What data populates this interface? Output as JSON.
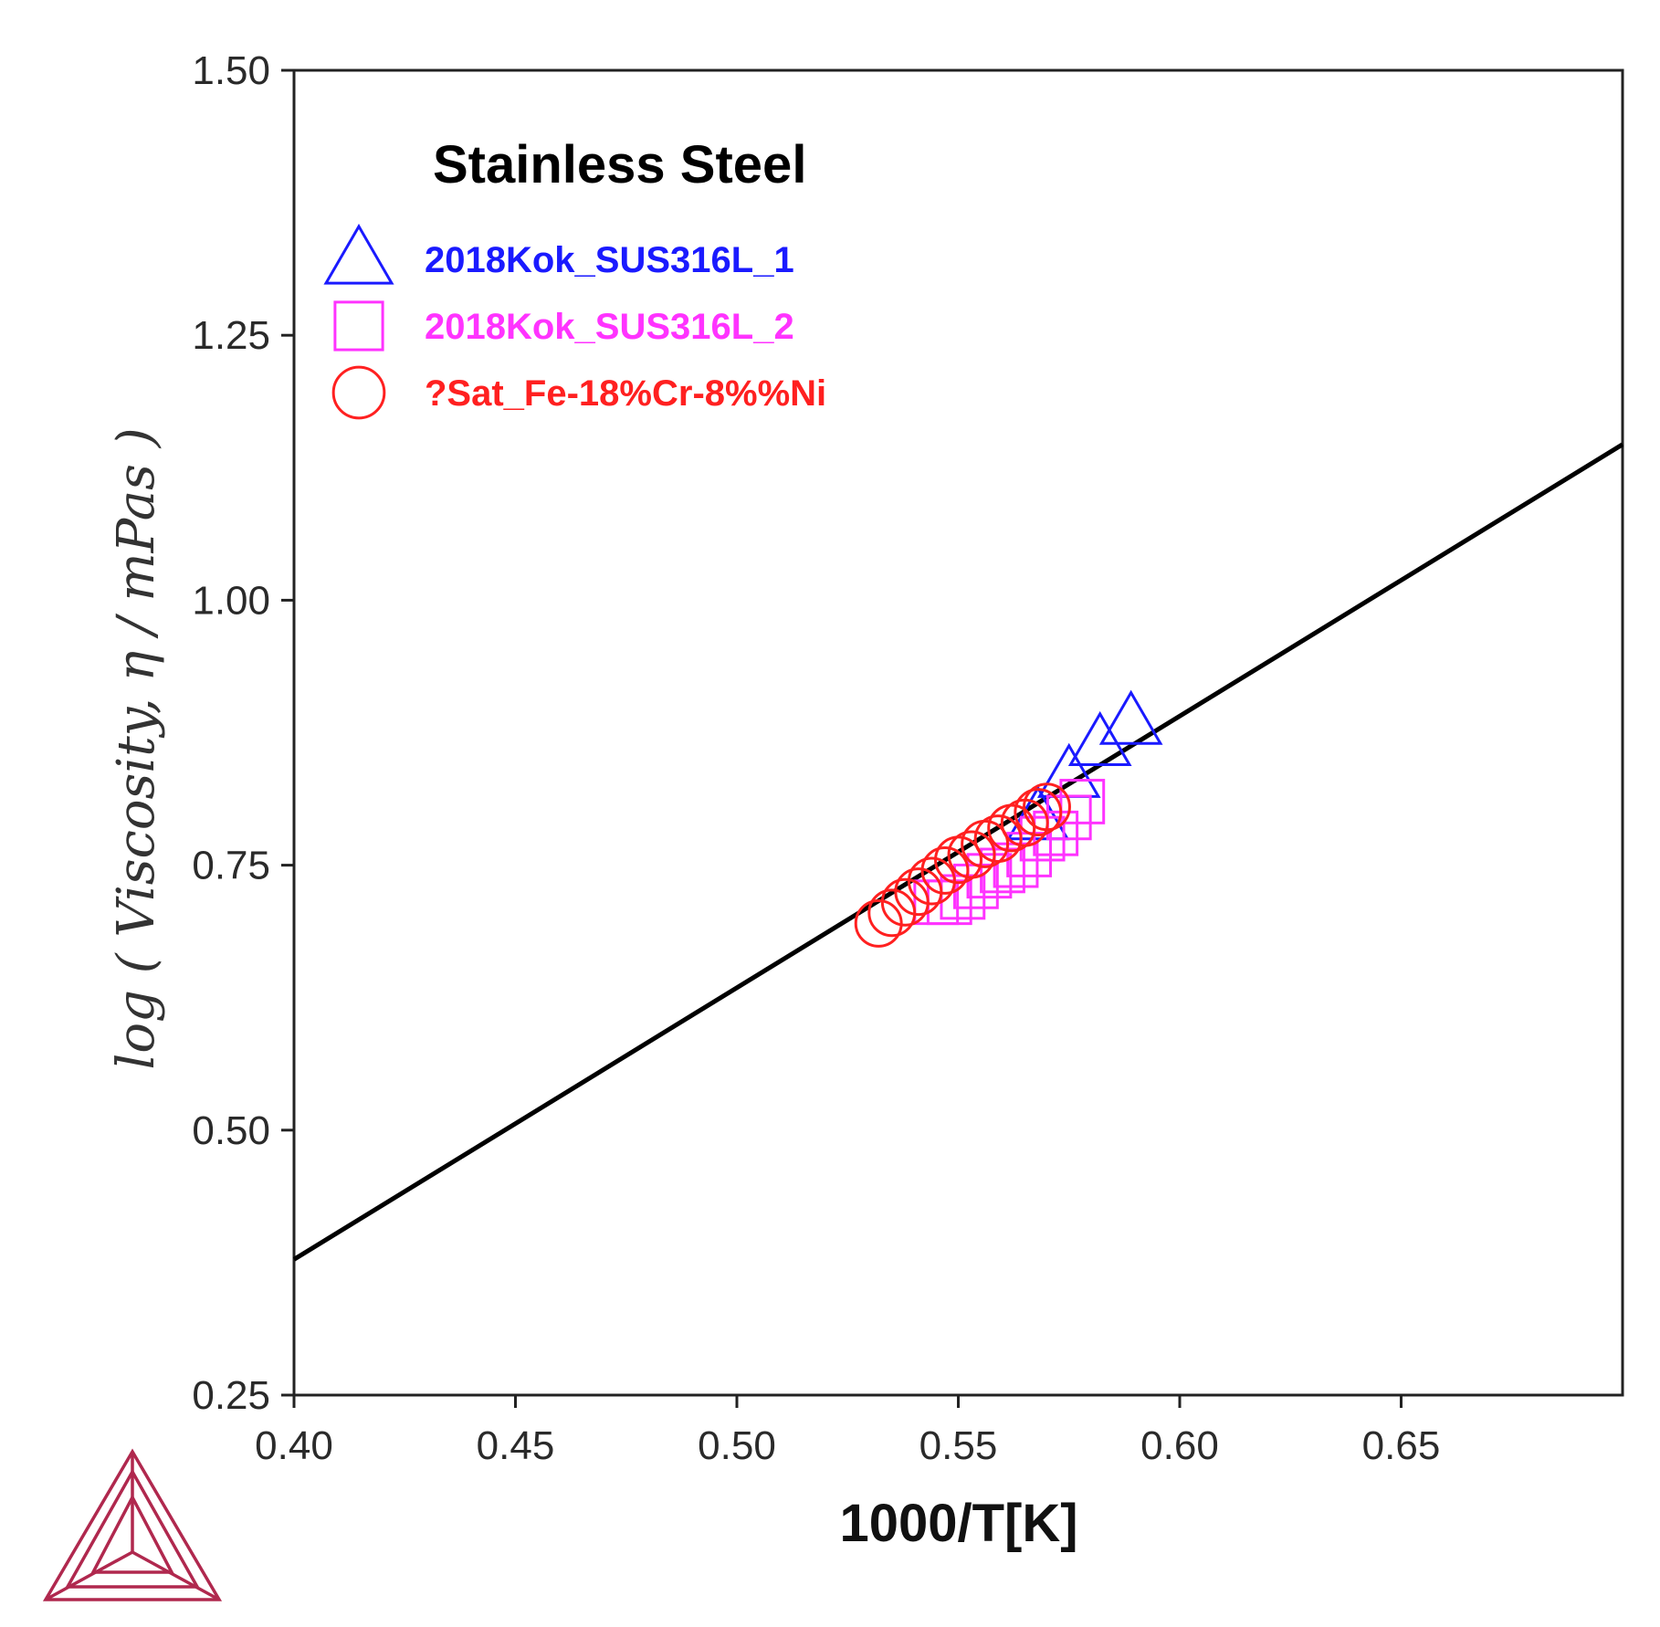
{
  "chart_data": {
    "type": "scatter",
    "title": "Stainless Steel",
    "xlabel": "1000/T[K]",
    "ylabel": "log ( Viscosity, η / mPas )",
    "xlim": [
      0.4,
      0.7
    ],
    "ylim": [
      0.25,
      1.5
    ],
    "xticks": [
      "0.40",
      "0.45",
      "0.50",
      "0.55",
      "0.60",
      "0.65"
    ],
    "yticks": [
      "0.25",
      "0.50",
      "0.75",
      "1.00",
      "1.25",
      "1.50"
    ],
    "grid": false,
    "legend_position": "top-left",
    "line": {
      "name": "",
      "color": "#000000",
      "x": [
        0.4,
        0.7
      ],
      "y": [
        0.378,
        1.147
      ]
    },
    "series": [
      {
        "name": "2018Kok_SUS316L_1",
        "marker": "triangle",
        "color": "#1a1aff",
        "x": [
          0.568,
          0.575,
          0.582,
          0.589
        ],
        "y": [
          0.795,
          0.835,
          0.865,
          0.885
        ]
      },
      {
        "name": "2018Kok_SUS316L_2",
        "marker": "square",
        "color": "#ff33ff",
        "x": [
          0.545,
          0.548,
          0.551,
          0.554,
          0.557,
          0.56,
          0.563,
          0.566,
          0.569,
          0.572,
          0.575,
          0.578
        ],
        "y": [
          0.715,
          0.715,
          0.72,
          0.73,
          0.74,
          0.745,
          0.75,
          0.76,
          0.775,
          0.78,
          0.795,
          0.81
        ]
      },
      {
        "name": "?Sat_Fe-18%Cr-8%%Ni",
        "marker": "circle",
        "color": "#ff2020",
        "x": [
          0.532,
          0.535,
          0.538,
          0.541,
          0.544,
          0.547,
          0.55,
          0.553,
          0.556,
          0.559,
          0.562,
          0.565,
          0.568,
          0.57
        ],
        "y": [
          0.695,
          0.705,
          0.715,
          0.725,
          0.735,
          0.745,
          0.755,
          0.76,
          0.77,
          0.775,
          0.785,
          0.79,
          0.8,
          0.805
        ]
      }
    ]
  },
  "logo": {
    "name": "thermo-calc-logo",
    "color": "#b0284e"
  }
}
